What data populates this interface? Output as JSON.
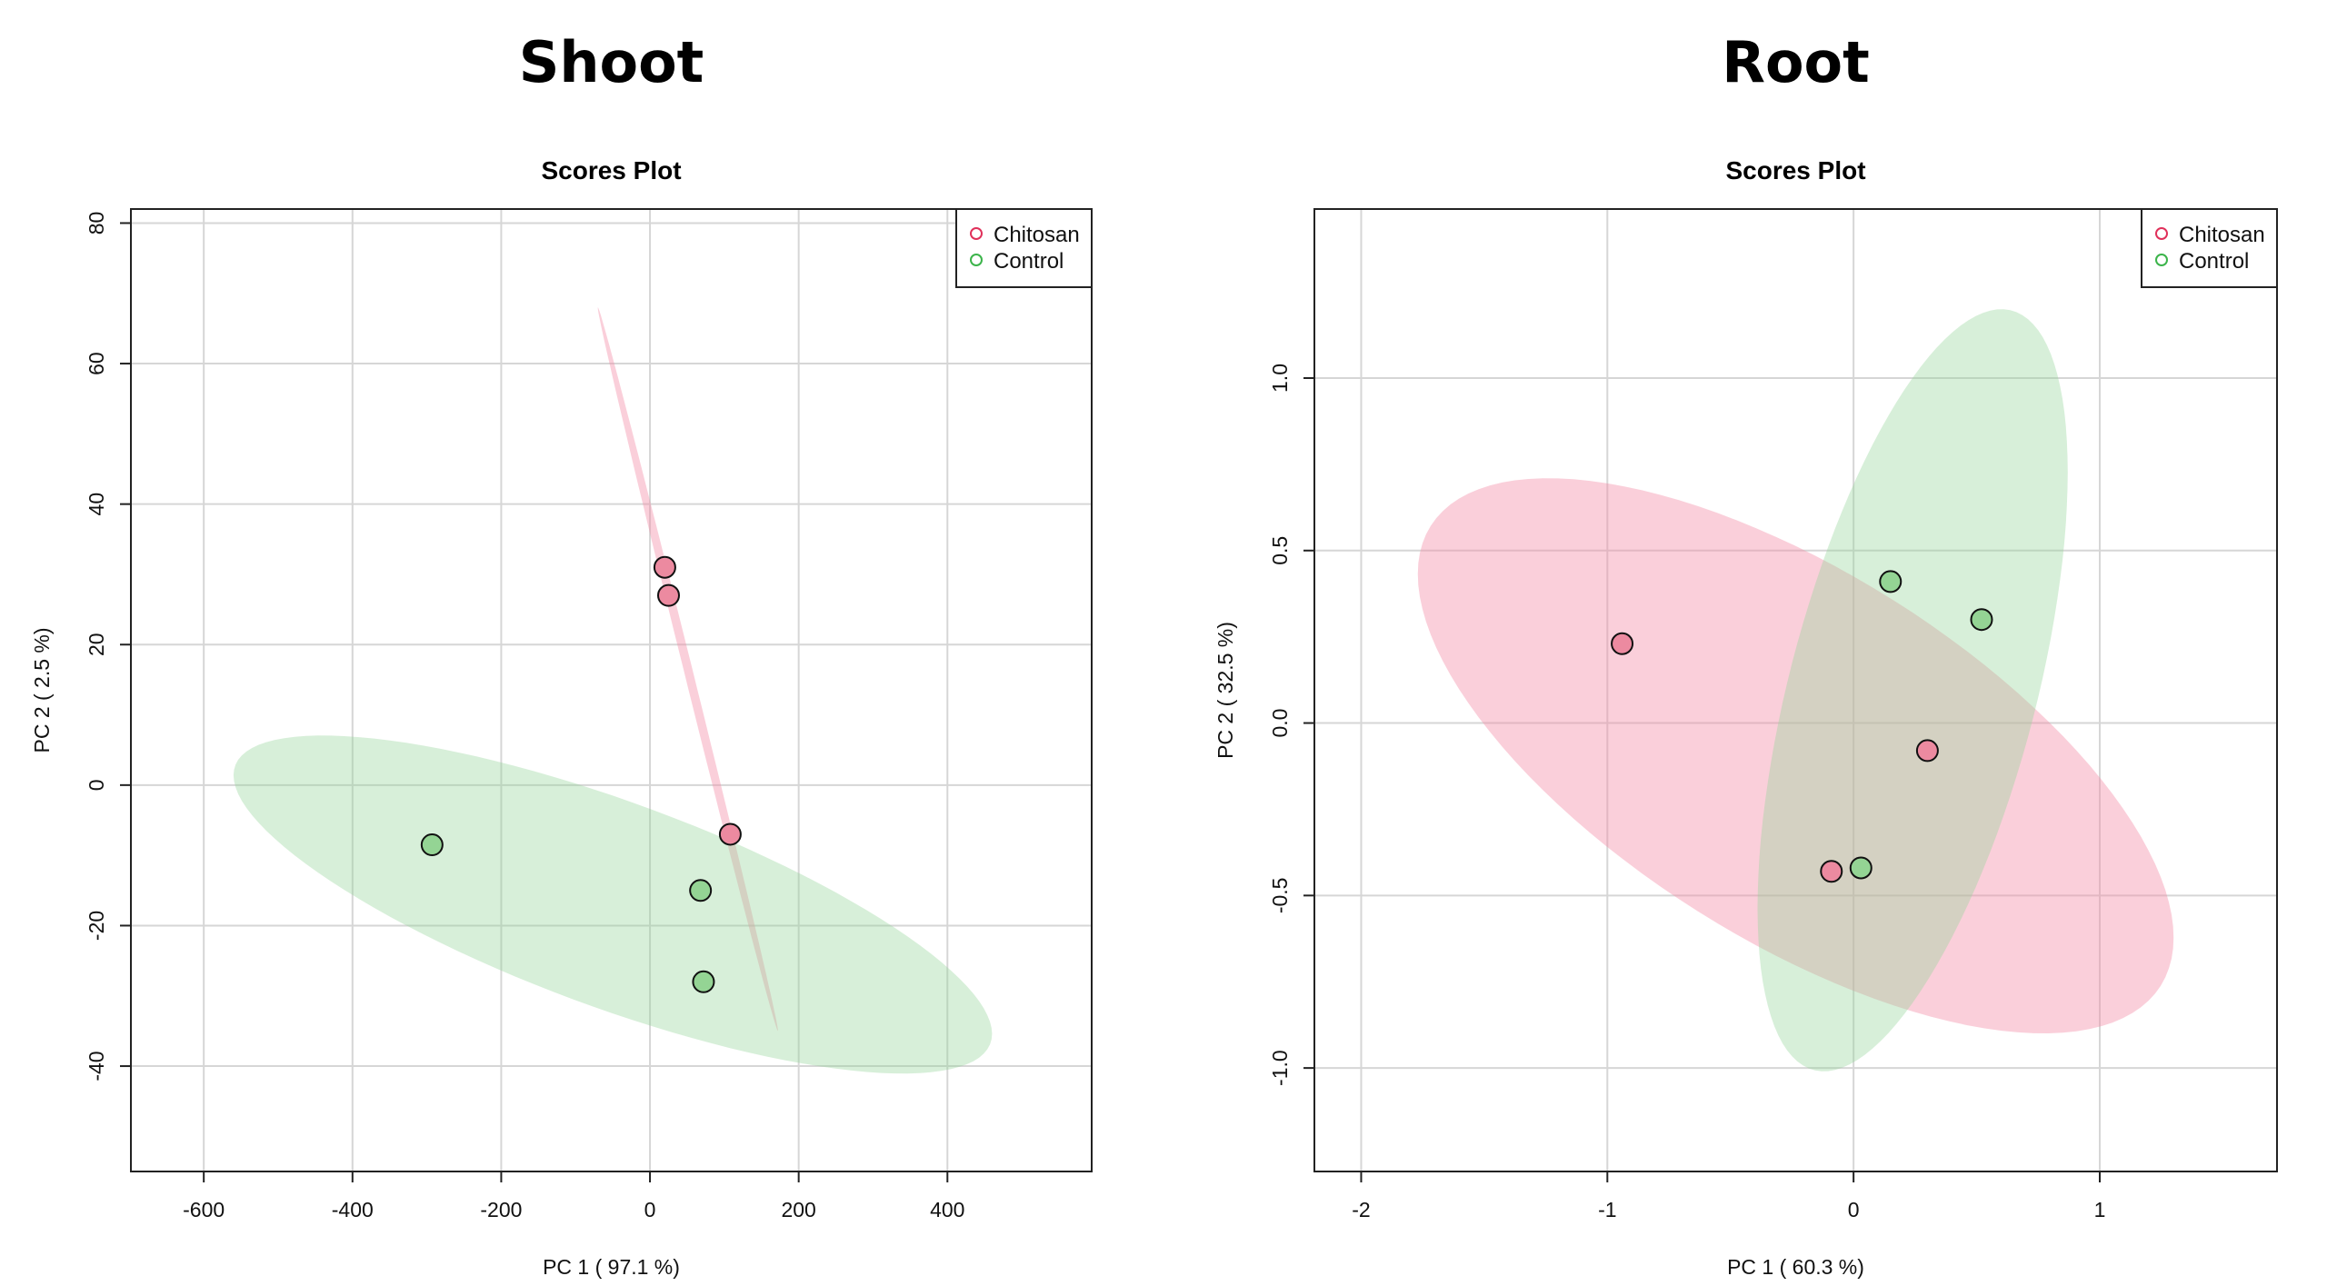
{
  "chart_data": [
    {
      "type": "scatter",
      "panel_title": "Shoot",
      "title": "Scores Plot",
      "xlabel": "PC 1 ( 97.1 %)",
      "ylabel": "PC 2 ( 2.5 %)",
      "xlim": [
        -698,
        594
      ],
      "ylim": [
        -55,
        82
      ],
      "xticks": [
        -600,
        -400,
        -200,
        0,
        200,
        400
      ],
      "yticks": [
        -40,
        -20,
        0,
        20,
        40,
        60,
        80
      ],
      "grid": true,
      "legend_position": "top-right",
      "series": [
        {
          "name": "Chitosan",
          "color": "#e0305a",
          "fill": "#ec8aa0",
          "points": [
            [
              20,
              31
            ],
            [
              25,
              27
            ],
            [
              108,
              -7
            ]
          ],
          "ellipse": {
            "center": [
              51,
              16.5
            ],
            "u": [
              121,
              -51.5
            ],
            "v": [
              6,
              0
            ]
          }
        },
        {
          "name": "Control",
          "color": "#3cb44b",
          "fill": "#94d494",
          "points": [
            [
              -293,
              -8.5
            ],
            [
              68,
              -15
            ],
            [
              72,
              -28
            ]
          ],
          "ellipse": {
            "center": [
              -50,
              -17
            ],
            "u": [
              510,
              -18.4
            ],
            "v": [
              0,
              15.5
            ]
          }
        }
      ]
    },
    {
      "type": "scatter",
      "panel_title": "Root",
      "title": "Scores Plot",
      "xlabel": "PC 1 ( 60.3 %)",
      "ylabel": "PC 2 ( 32.5 %)",
      "xlim": [
        -2.19,
        1.72
      ],
      "ylim": [
        -1.3,
        1.49
      ],
      "xticks": [
        -2,
        -1,
        0,
        1
      ],
      "yticks": [
        -1.0,
        -0.5,
        0.0,
        0.5,
        1.0
      ],
      "ytick_labels": [
        "-1.0",
        "-0.5",
        "0.0",
        "0.5",
        "1.0"
      ],
      "grid": true,
      "legend_position": "top-right",
      "series": [
        {
          "name": "Chitosan",
          "color": "#e0305a",
          "fill": "#ec8aa0",
          "points": [
            [
              -0.94,
              0.23
            ],
            [
              -0.09,
              -0.43
            ],
            [
              0.3,
              -0.08
            ]
          ],
          "ellipse": {
            "center": [
              -0.235,
              -0.095
            ],
            "u": [
              1.535,
              -0.527
            ],
            "v": [
              0,
              0.608
            ]
          }
        },
        {
          "name": "Control",
          "color": "#3cb44b",
          "fill": "#94d494",
          "points": [
            [
              0.15,
              0.41
            ],
            [
              0.52,
              0.3
            ],
            [
              0.03,
              -0.42
            ]
          ],
          "ellipse": {
            "center": [
              0.24,
              0.095
            ],
            "u": [
              0.63,
              0.632
            ],
            "v": [
              0,
              0.906
            ]
          }
        }
      ]
    }
  ]
}
